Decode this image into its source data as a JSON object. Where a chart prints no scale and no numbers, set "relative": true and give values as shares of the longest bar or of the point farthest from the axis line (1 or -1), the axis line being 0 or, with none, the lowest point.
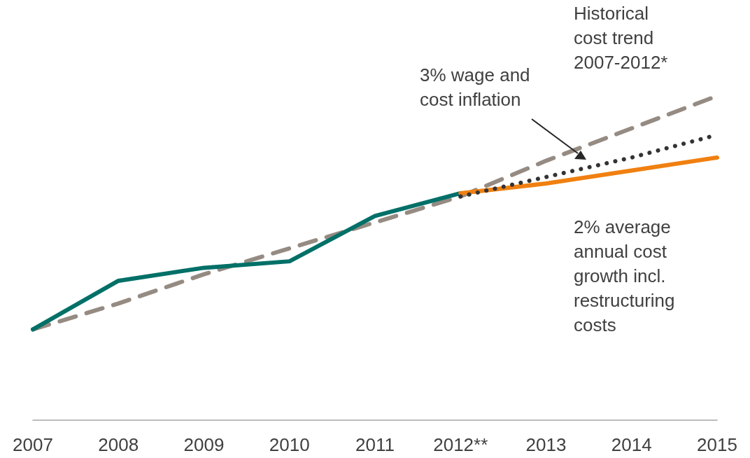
{
  "chart_data": {
    "type": "line",
    "relative": true,
    "categories": [
      "2007",
      "2008",
      "2009",
      "2010",
      "2011",
      "2012**",
      "2013",
      "2014",
      "2015"
    ],
    "series": [
      {
        "color": "#958b82",
        "line_style": "dashed",
        "values": [
          0.28,
          0.36,
          0.45,
          0.53,
          0.61,
          0.69,
          0.8,
          0.9,
          1
        ]
      },
      {
        "color": "#007068",
        "line_style": "solid",
        "values": [
          0.28,
          0.43,
          0.47,
          0.49,
          0.63,
          0.7,
          null,
          null,
          null
        ]
      },
      {
        "color": "#f08010",
        "line_style": "solid",
        "values": [
          null,
          null,
          null,
          null,
          null,
          0.7,
          0.73,
          0.77,
          0.81
        ]
      },
      {
        "color": "#333333",
        "line_style": "dotted",
        "values": [
          null,
          null,
          null,
          null,
          null,
          0.69,
          0.75,
          0.81,
          0.88
        ]
      }
    ],
    "annotations": [
      "Historical cost trend 2007-2012*",
      "3% wage and cost inflation",
      "2% average annual cost growth incl. restructuring costs"
    ],
    "marker": "none"
  }
}
